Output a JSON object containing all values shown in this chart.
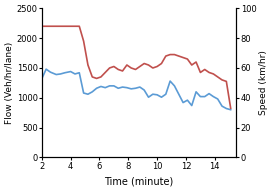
{
  "xlabel": "Time (minute)",
  "ylabel_left": "Flow (Veh/hr/lane)",
  "ylabel_right": "Speed (km/hr)",
  "xlim": [
    2,
    15.5
  ],
  "ylim_left": [
    0,
    2500
  ],
  "ylim_right": [
    0,
    100
  ],
  "xticks": [
    2,
    4,
    6,
    8,
    10,
    12,
    14
  ],
  "yticks_left": [
    0,
    500,
    1000,
    1500,
    2000,
    2500
  ],
  "yticks_right": [
    0,
    20,
    40,
    60,
    80,
    100
  ],
  "flow_color": "#5b9bd5",
  "speed_color": "#c0504d",
  "time": [
    2.0,
    2.3,
    2.6,
    3.0,
    3.3,
    3.6,
    4.0,
    4.3,
    4.6,
    4.9,
    5.2,
    5.5,
    5.8,
    6.1,
    6.4,
    6.7,
    7.0,
    7.3,
    7.6,
    7.9,
    8.2,
    8.5,
    8.8,
    9.1,
    9.4,
    9.7,
    10.0,
    10.3,
    10.6,
    10.9,
    11.2,
    11.5,
    11.8,
    12.1,
    12.4,
    12.7,
    13.0,
    13.3,
    13.6,
    13.9,
    14.2,
    14.5,
    14.8,
    15.1
  ],
  "flow": [
    1320,
    1480,
    1430,
    1390,
    1400,
    1420,
    1440,
    1400,
    1420,
    1080,
    1060,
    1100,
    1160,
    1190,
    1170,
    1200,
    1200,
    1160,
    1180,
    1170,
    1150,
    1160,
    1180,
    1130,
    1010,
    1060,
    1050,
    1010,
    1060,
    1280,
    1200,
    1060,
    920,
    960,
    870,
    1100,
    1020,
    1020,
    1070,
    1020,
    980,
    860,
    820,
    800
  ],
  "speed": [
    88,
    88,
    88,
    88,
    88,
    88,
    88,
    88,
    88,
    78,
    62,
    54,
    53,
    54,
    57,
    60,
    61,
    59,
    58,
    62,
    60,
    59,
    61,
    63,
    62,
    60,
    61,
    63,
    68,
    69,
    69,
    68,
    67,
    66,
    62,
    64,
    57,
    59,
    57,
    56,
    54,
    52,
    51,
    33
  ],
  "linewidth": 1.2
}
